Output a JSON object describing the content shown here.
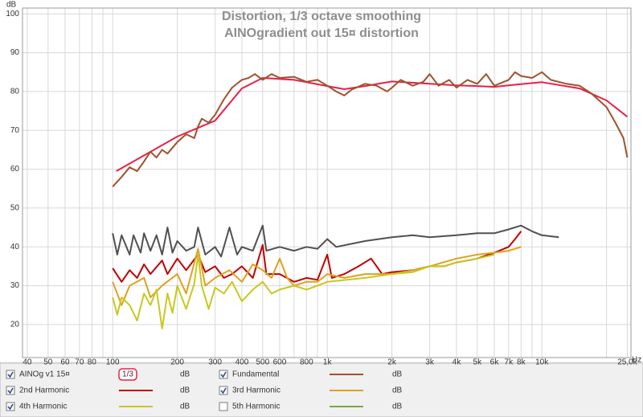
{
  "chart_data": {
    "type": "line",
    "title": "Distortion, 1/3 octave smoothing",
    "subtitle": "AINOgradient out 15¤ distortion",
    "y_label": "dB",
    "x_unit": "Hz",
    "legend_unit": "dB",
    "log_x": true,
    "grid": true,
    "legend_position": "bottom",
    "xlim": [
      38,
      26000
    ],
    "ylim": [
      11.5,
      101.5
    ],
    "yticks": [
      20,
      30,
      40,
      50,
      60,
      70,
      80,
      90,
      100
    ],
    "xticks": [
      40,
      50,
      60,
      70,
      80,
      100,
      200,
      300,
      400,
      500,
      600,
      800,
      {
        "value": 1000,
        "label": "1k"
      },
      {
        "value": 2000,
        "label": "2k"
      },
      {
        "value": 3000,
        "label": "3k"
      },
      {
        "value": 4000,
        "label": "4k"
      },
      {
        "value": 5000,
        "label": "5k"
      },
      {
        "value": 6000,
        "label": "6k"
      },
      {
        "value": 7000,
        "label": "7k"
      },
      {
        "value": 8000,
        "label": "8k"
      },
      {
        "value": 10000,
        "label": "10k"
      },
      {
        "value": 25000,
        "label": "25,0k"
      }
    ],
    "xgrid_minor": [
      90,
      700,
      900,
      9000,
      20000
    ],
    "series": [
      {
        "name": "AINOg v1 15¤",
        "smoothing": "1/3",
        "checked": true,
        "color": "#e8204a",
        "x": [
          104,
          200,
          300,
          400,
          500,
          700,
          1000,
          1200,
          1500,
          2000,
          3000,
          4000,
          5000,
          6000,
          7000,
          10000,
          15000,
          20000,
          25000
        ],
        "values": [
          59.5,
          68.4,
          72.5,
          80.8,
          83.5,
          83,
          81.4,
          80.6,
          81.4,
          82.6,
          82,
          81.6,
          81.4,
          81.2,
          81.6,
          82.4,
          80.8,
          77.7,
          73.5
        ]
      },
      {
        "name": "Fundamental",
        "checked": true,
        "color": "#a0522d",
        "x": [
          100,
          110,
          120,
          130,
          140,
          150,
          160,
          170,
          180,
          200,
          220,
          240,
          250,
          260,
          280,
          300,
          330,
          360,
          400,
          430,
          460,
          500,
          550,
          600,
          700,
          800,
          900,
          1000,
          1100,
          1200,
          1300,
          1500,
          1700,
          1900,
          2000,
          2200,
          2500,
          2800,
          3000,
          3300,
          3700,
          4000,
          4500,
          5000,
          5500,
          6000,
          7000,
          7500,
          8000,
          9000,
          10000,
          11000,
          13000,
          15000,
          17000,
          20000,
          22000,
          24000,
          25000
        ],
        "values": [
          55.5,
          58,
          60.5,
          59.5,
          62,
          64.5,
          63,
          65,
          64,
          67,
          69,
          68,
          71,
          73,
          72,
          74,
          78,
          81,
          83,
          83.5,
          84.5,
          83,
          84.5,
          83.5,
          83.8,
          82.5,
          83,
          81.5,
          80,
          79,
          80.5,
          82,
          81.5,
          80,
          81,
          83,
          81.5,
          82.5,
          84.5,
          81.5,
          83,
          81,
          83,
          82,
          84.5,
          81.5,
          83,
          85,
          84,
          83.5,
          85,
          83,
          82,
          81.5,
          79.5,
          76,
          72,
          68,
          63
        ]
      },
      {
        "name": "2nd Harmonic",
        "checked": true,
        "color": "#c00000",
        "x": [
          100,
          110,
          120,
          130,
          140,
          150,
          170,
          180,
          200,
          220,
          250,
          270,
          300,
          330,
          360,
          400,
          450,
          500,
          520,
          600,
          700,
          800,
          900,
          1000,
          1050,
          1200,
          1400,
          1600,
          1800,
          2000,
          2500,
          3000,
          3500,
          4000,
          4500,
          5000,
          6000,
          7000,
          7500,
          8000
        ],
        "values": [
          34.5,
          31,
          34,
          32,
          35.5,
          33,
          36.5,
          33,
          37,
          34,
          38,
          33.5,
          35,
          32,
          33,
          35,
          32,
          40.5,
          33,
          33,
          31,
          32,
          31.5,
          38,
          32,
          33,
          35,
          37,
          33,
          33.5,
          34,
          35,
          35,
          36,
          36.5,
          37,
          38.5,
          40,
          42,
          44
        ]
      },
      {
        "name": "3rd Harmonic",
        "checked": true,
        "color": "#e0a020",
        "x": [
          100,
          110,
          120,
          140,
          150,
          170,
          200,
          220,
          250,
          270,
          300,
          350,
          400,
          450,
          500,
          550,
          600,
          650,
          700,
          800,
          900,
          1000,
          1200,
          1500,
          2000,
          2500,
          3000,
          4000,
          5000,
          6000,
          7000,
          8000
        ],
        "values": [
          31,
          25,
          30,
          32,
          27,
          30,
          33,
          28,
          39.5,
          30,
          32,
          34,
          31,
          35.5,
          34,
          32,
          37,
          32,
          30,
          31,
          31,
          33,
          32,
          33,
          33,
          34,
          35,
          37,
          38,
          38.5,
          39,
          40
        ]
      },
      {
        "name": "4th Harmonic",
        "checked": true,
        "color": "#c8c820",
        "x": [
          100,
          105,
          110,
          120,
          130,
          140,
          150,
          160,
          170,
          180,
          190,
          200,
          220,
          240,
          250,
          260,
          280,
          300,
          330,
          360,
          400,
          450,
          500,
          550,
          600,
          700,
          800,
          900,
          1000,
          1500,
          2000,
          2500,
          3000,
          3500,
          4000,
          5000,
          6000
        ],
        "values": [
          27,
          22.5,
          27,
          25,
          21,
          28,
          25,
          29,
          19,
          28,
          23,
          30,
          24,
          30.5,
          38,
          30,
          24,
          29.5,
          28,
          31,
          26,
          29,
          31,
          28,
          29,
          30,
          29,
          30,
          31,
          32,
          33,
          33.5,
          35,
          35,
          36,
          37,
          38
        ]
      },
      {
        "name": "5th Harmonic",
        "checked": false,
        "color": "#7aaa3a",
        "x": [],
        "values": []
      },
      {
        "color": "#505050",
        "x": [
          100,
          105,
          110,
          120,
          125,
          135,
          140,
          150,
          160,
          170,
          180,
          190,
          200,
          220,
          240,
          250,
          270,
          300,
          320,
          350,
          380,
          400,
          450,
          500,
          520,
          600,
          700,
          800,
          900,
          1000,
          1100,
          1500,
          2000,
          2500,
          3000,
          4000,
          5000,
          6000,
          7000,
          8000,
          9000,
          10000,
          12000
        ],
        "values": [
          43.5,
          38,
          43,
          38,
          43,
          38.5,
          43.5,
          39,
          43,
          38,
          45,
          38.5,
          41.5,
          39,
          40,
          45,
          38,
          40,
          37.5,
          45,
          38,
          40,
          39,
          45.5,
          39,
          40,
          39,
          40,
          39.5,
          42,
          40,
          41.5,
          42.5,
          43,
          42.5,
          43,
          43.5,
          43.5,
          44.5,
          45.5,
          44,
          43,
          42.5
        ]
      }
    ]
  }
}
